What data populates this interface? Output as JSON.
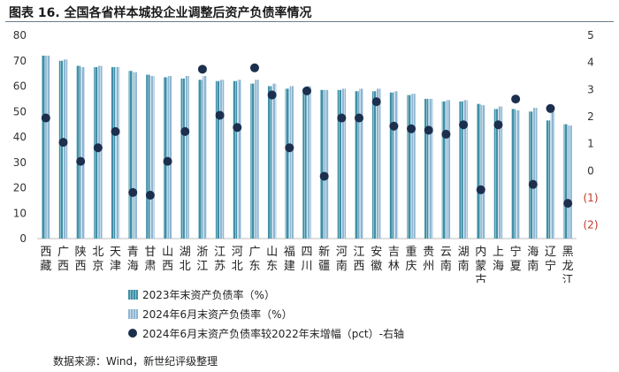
{
  "title": "图表 16. 全国各省样本城投企业调整后资产负债率情况",
  "source": "数据来源：Wind，新世纪评级整理",
  "legend": [
    {
      "label": "2023年末资产负债率（%）",
      "color": "#3f8fa6"
    },
    {
      "label": "2024年6月末资产负债率（%）",
      "color": "#9ec3dc"
    },
    {
      "label": "2024年6月末资产负债率较2022年末增幅（pct）-右轴",
      "color": "#1d2f4e"
    }
  ],
  "chart_data": {
    "type": "bar",
    "categories": [
      "西藏",
      "广西",
      "陕西",
      "北京",
      "天津",
      "青海",
      "甘肃",
      "山西",
      "湖北",
      "浙江",
      "江苏",
      "河北",
      "广东",
      "山东",
      "福建",
      "四川",
      "新疆",
      "河南",
      "江西",
      "安徽",
      "吉林",
      "重庆",
      "贵州",
      "云南",
      "湖南",
      "内蒙古",
      "上海",
      "宁夏",
      "海南",
      "辽宁",
      "黑龙江"
    ],
    "series": [
      {
        "name": "2023年末资产负债率（%）",
        "axis": "left",
        "type": "bar",
        "values": [
          72,
          70,
          68,
          67.5,
          67.5,
          66,
          64.5,
          63.5,
          63,
          62.5,
          62,
          62,
          61,
          60,
          59,
          59,
          58.5,
          58.5,
          58,
          58,
          57.5,
          56.5,
          55,
          54,
          54,
          53,
          51,
          51,
          50,
          46.5,
          45
        ]
      },
      {
        "name": "2024年6月末资产负债率（%）",
        "axis": "left",
        "type": "bar",
        "values": [
          72,
          70.5,
          67.5,
          68,
          67.5,
          65.5,
          64,
          64,
          64,
          64,
          62.5,
          62.5,
          62.5,
          61,
          60,
          60,
          58.5,
          59,
          59,
          59,
          58,
          57,
          55,
          54.5,
          54.5,
          52.5,
          52,
          50.5,
          51.5,
          50,
          44.5
        ]
      },
      {
        "name": "2024年6月末资产负债率较2022年末增幅（pct）-右轴",
        "axis": "right",
        "type": "scatter",
        "values": [
          1.95,
          1.05,
          0.35,
          0.85,
          1.45,
          -0.8,
          -0.9,
          0.35,
          1.45,
          3.75,
          2.05,
          1.6,
          3.8,
          2.8,
          0.85,
          2.95,
          -0.2,
          1.95,
          1.95,
          2.55,
          1.65,
          1.55,
          1.5,
          1.35,
          1.7,
          -0.7,
          1.7,
          2.65,
          -0.5,
          2.3,
          -1.2
        ]
      }
    ],
    "y_left": {
      "min": 0,
      "max": 80,
      "ticks": [
        "0",
        "10",
        "20",
        "30",
        "40",
        "50",
        "60",
        "70",
        "80"
      ]
    },
    "y_right": {
      "min": -2.5,
      "max": 5,
      "ticks": [
        "(2)",
        "(1)",
        "0",
        "1",
        "2",
        "3",
        "4",
        "5"
      ],
      "tick_values": [
        -2,
        -1,
        0,
        1,
        2,
        3,
        4,
        5
      ],
      "negative_color": "#c0392b"
    },
    "grid": false,
    "legend_position": "bottom"
  }
}
